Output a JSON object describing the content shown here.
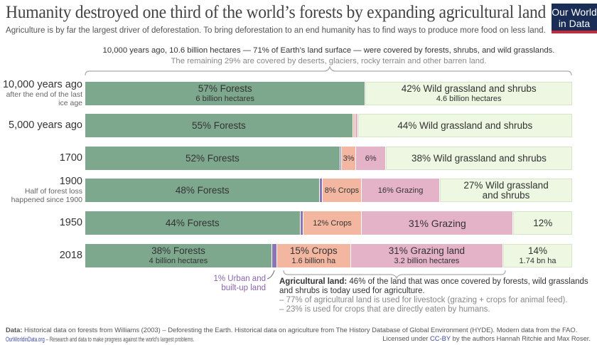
{
  "title": "Humanity destroyed one third of the world’s forests by expanding agricultural land",
  "subtitle": "Agriculture is by far the largest driver of deforestation. To bring deforestation to an end humanity has to find ways to produce more food on less land.",
  "logo": {
    "line1": "Our World",
    "line2": "in Data"
  },
  "top_note": {
    "line1": "10,000 years ago, 10.6 billion hectares — 71% of Earth’s land surface — were covered by forests, shrubs, and wild grasslands.",
    "line2": "The remaining 29% are covered by deserts, glaciers, rocky terrain and other barren land."
  },
  "colors": {
    "forests": "#7ea88e",
    "urban": "#8d74b6",
    "crops": "#f3b7a1",
    "grazing": "#e5b3c7",
    "wild": "#edf7e1"
  },
  "chart_data": {
    "type": "bar",
    "orientation": "horizontal-stacked-100",
    "categories": [
      "10,000 years ago",
      "5,000 years ago",
      "1700",
      "1900",
      "1950",
      "2018"
    ],
    "category_notes": [
      "after the end of the last ice age",
      "",
      "",
      "Half of forest loss happened since 1900",
      "",
      ""
    ],
    "series": [
      {
        "name": "Forests",
        "key": "forests",
        "values": [
          57,
          55,
          52,
          48,
          44,
          38
        ]
      },
      {
        "name": "Urban and built-up land",
        "key": "urban",
        "values": [
          0,
          0,
          0.3,
          0.5,
          0.6,
          1
        ]
      },
      {
        "name": "Crops",
        "key": "crops",
        "values": [
          0,
          0.5,
          3,
          8,
          12,
          15
        ]
      },
      {
        "name": "Grazing",
        "key": "grazing",
        "values": [
          0,
          0.5,
          6,
          16,
          31,
          31
        ]
      },
      {
        "name": "Wild grassland and shrubs",
        "key": "wild",
        "values": [
          42,
          44,
          38,
          27,
          12,
          14
        ]
      }
    ],
    "labels": [
      {
        "forests": [
          "57% Forests",
          "6 billion hectares"
        ],
        "wild": [
          "42% Wild grassland and shrubs",
          "4.6 billion hectares"
        ]
      },
      {
        "forests": [
          "55% Forests"
        ],
        "wild": [
          "44% Wild grassland and shrubs"
        ]
      },
      {
        "forests": [
          "52% Forests"
        ],
        "crops": [
          "3%"
        ],
        "grazing": [
          "6%"
        ],
        "wild": [
          "38% Wild grassland and shrubs"
        ]
      },
      {
        "forests": [
          "48% Forests"
        ],
        "crops": [
          "8% Crops"
        ],
        "grazing": [
          "16% Grazing"
        ],
        "wild": [
          "27% Wild grassland",
          "and shrubs"
        ]
      },
      {
        "forests": [
          "44% Forests"
        ],
        "crops": [
          "12% Crops"
        ],
        "grazing": [
          "31% Grazing"
        ],
        "wild": [
          "12%"
        ]
      },
      {
        "forests": [
          "38% Forests",
          "4 billion hectares"
        ],
        "crops": [
          "15% Crops",
          "1.6 billion ha"
        ],
        "grazing": [
          "31% Grazing land",
          "3.2 billion hectares"
        ],
        "wild": [
          "14%",
          "1.74 bn ha"
        ]
      }
    ]
  },
  "urban_note": "1% Urban and built-up land",
  "agri_note": {
    "bold": "Agricultural land:",
    "text": " 46% of the land that was once covered by forests, wild grasslands and shrubs is today used for agriculture.",
    "line3": "– 77% of agricultural land is used for livestock (grazing + crops for animal feed).",
    "line4": "– 23% is used for crops that are directly eaten by humans."
  },
  "footer": {
    "data_label": "Data:",
    "data_text": " Historical data on forests from Williams (2003) – Deforesting the Earth. Historical data on agriculture from The History Database of Global Environment (HYDE). Modern data from the FAO.",
    "site": "OurWorldinData.org",
    "site_text": " – Research and data to make progress against the world’s largest problems.",
    "license_pre": "Licensed under ",
    "license_link": "CC-BY",
    "license_post": " by the authors Hannah Ritchie and Max Roser."
  }
}
